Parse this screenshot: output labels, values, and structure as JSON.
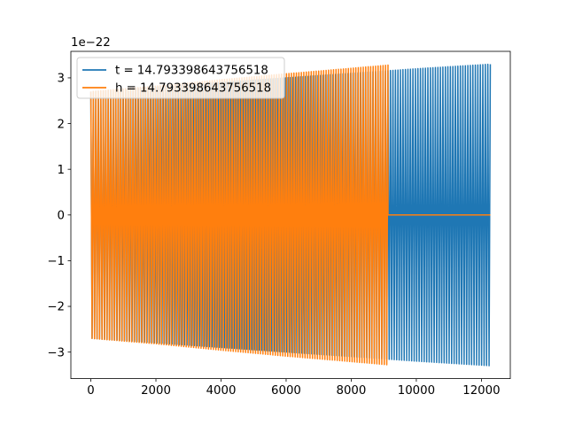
{
  "chart_data": {
    "type": "line",
    "title": "",
    "xlabel": "",
    "ylabel": "",
    "offset_text": "1e−22",
    "xlim": [
      -613.5,
      12887.5
    ],
    "ylim": [
      -3.58,
      3.58
    ],
    "y_scale_exponent": -22,
    "grid": false,
    "legend_position": "top-left",
    "x_ticks": [
      0,
      2000,
      4000,
      6000,
      8000,
      10000,
      12000
    ],
    "x_tick_labels": [
      "0",
      "2000",
      "4000",
      "6000",
      "8000",
      "10000",
      "12000"
    ],
    "y_ticks": [
      -3,
      -2,
      -1,
      0,
      1,
      2,
      3
    ],
    "y_tick_labels": [
      "−3",
      "−2",
      "−1",
      "0",
      "1",
      "2",
      "3"
    ],
    "series": [
      {
        "name": "t = 14.793398643756518",
        "color": "#1f77b4",
        "x_start": 0,
        "x_end": 12274,
        "envelope_upper": [
          [
            0,
            2.7
          ],
          [
            2000,
            2.8
          ],
          [
            4000,
            2.9
          ],
          [
            6000,
            3.0
          ],
          [
            8000,
            3.1
          ],
          [
            10000,
            3.2
          ],
          [
            12274,
            3.3
          ]
        ],
        "envelope_lower": [
          [
            0,
            -2.7
          ],
          [
            2000,
            -2.8
          ],
          [
            4000,
            -2.9
          ],
          [
            6000,
            -3.0
          ],
          [
            8000,
            -3.1
          ],
          [
            10000,
            -3.2
          ],
          [
            12274,
            -3.3
          ]
        ],
        "cycles": 160
      },
      {
        "name": "h = 14.793398643756518",
        "color": "#ff7f0e",
        "x_start": 0,
        "x_end": 9130,
        "flat_after": [
          9130,
          12274,
          0
        ],
        "envelope_upper": [
          [
            0,
            2.7
          ],
          [
            2000,
            2.82
          ],
          [
            4000,
            2.96
          ],
          [
            6000,
            3.09
          ],
          [
            8000,
            3.21
          ],
          [
            9130,
            3.28
          ]
        ],
        "envelope_lower": [
          [
            0,
            -2.7
          ],
          [
            2000,
            -2.82
          ],
          [
            4000,
            -2.96
          ],
          [
            6000,
            -3.09
          ],
          [
            8000,
            -3.21
          ],
          [
            9130,
            -3.28
          ]
        ],
        "cycles": 120
      }
    ],
    "legend": [
      {
        "label": "t = 14.793398643756518",
        "color": "#1f77b4"
      },
      {
        "label": "h = 14.793398643756518",
        "color": "#ff7f0e"
      }
    ]
  }
}
